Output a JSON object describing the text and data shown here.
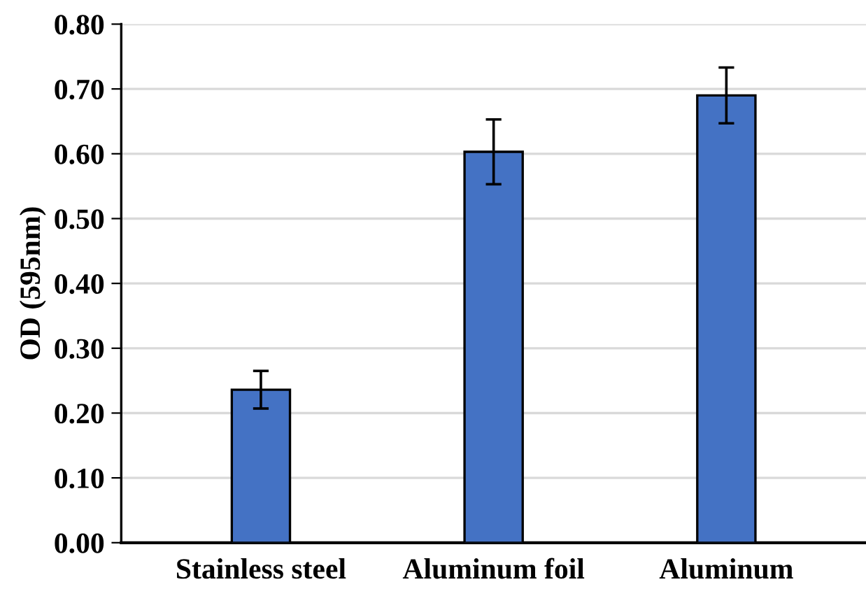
{
  "chart_data": {
    "type": "bar",
    "ylabel": "OD (595nm)",
    "categories": [
      "Stainless steel",
      "Aluminum foil",
      "Aluminum"
    ],
    "values": [
      0.236,
      0.603,
      0.69
    ],
    "errors": [
      0.029,
      0.05,
      0.043
    ],
    "color": "#4472c4",
    "ylim": [
      0,
      0.8
    ],
    "yticks": [
      {
        "value": 0,
        "label": "0.00"
      },
      {
        "value": 0.1,
        "label": "0.10"
      },
      {
        "value": 0.2,
        "label": "0.20"
      },
      {
        "value": 0.3,
        "label": "0.30"
      },
      {
        "value": 0.4,
        "label": "0.40"
      },
      {
        "value": 0.5,
        "label": "0.50"
      },
      {
        "value": 0.6,
        "label": "0.60"
      },
      {
        "value": 0.7,
        "label": "0.70"
      },
      {
        "value": 0.8,
        "label": "0.80"
      }
    ],
    "grid": "y"
  }
}
